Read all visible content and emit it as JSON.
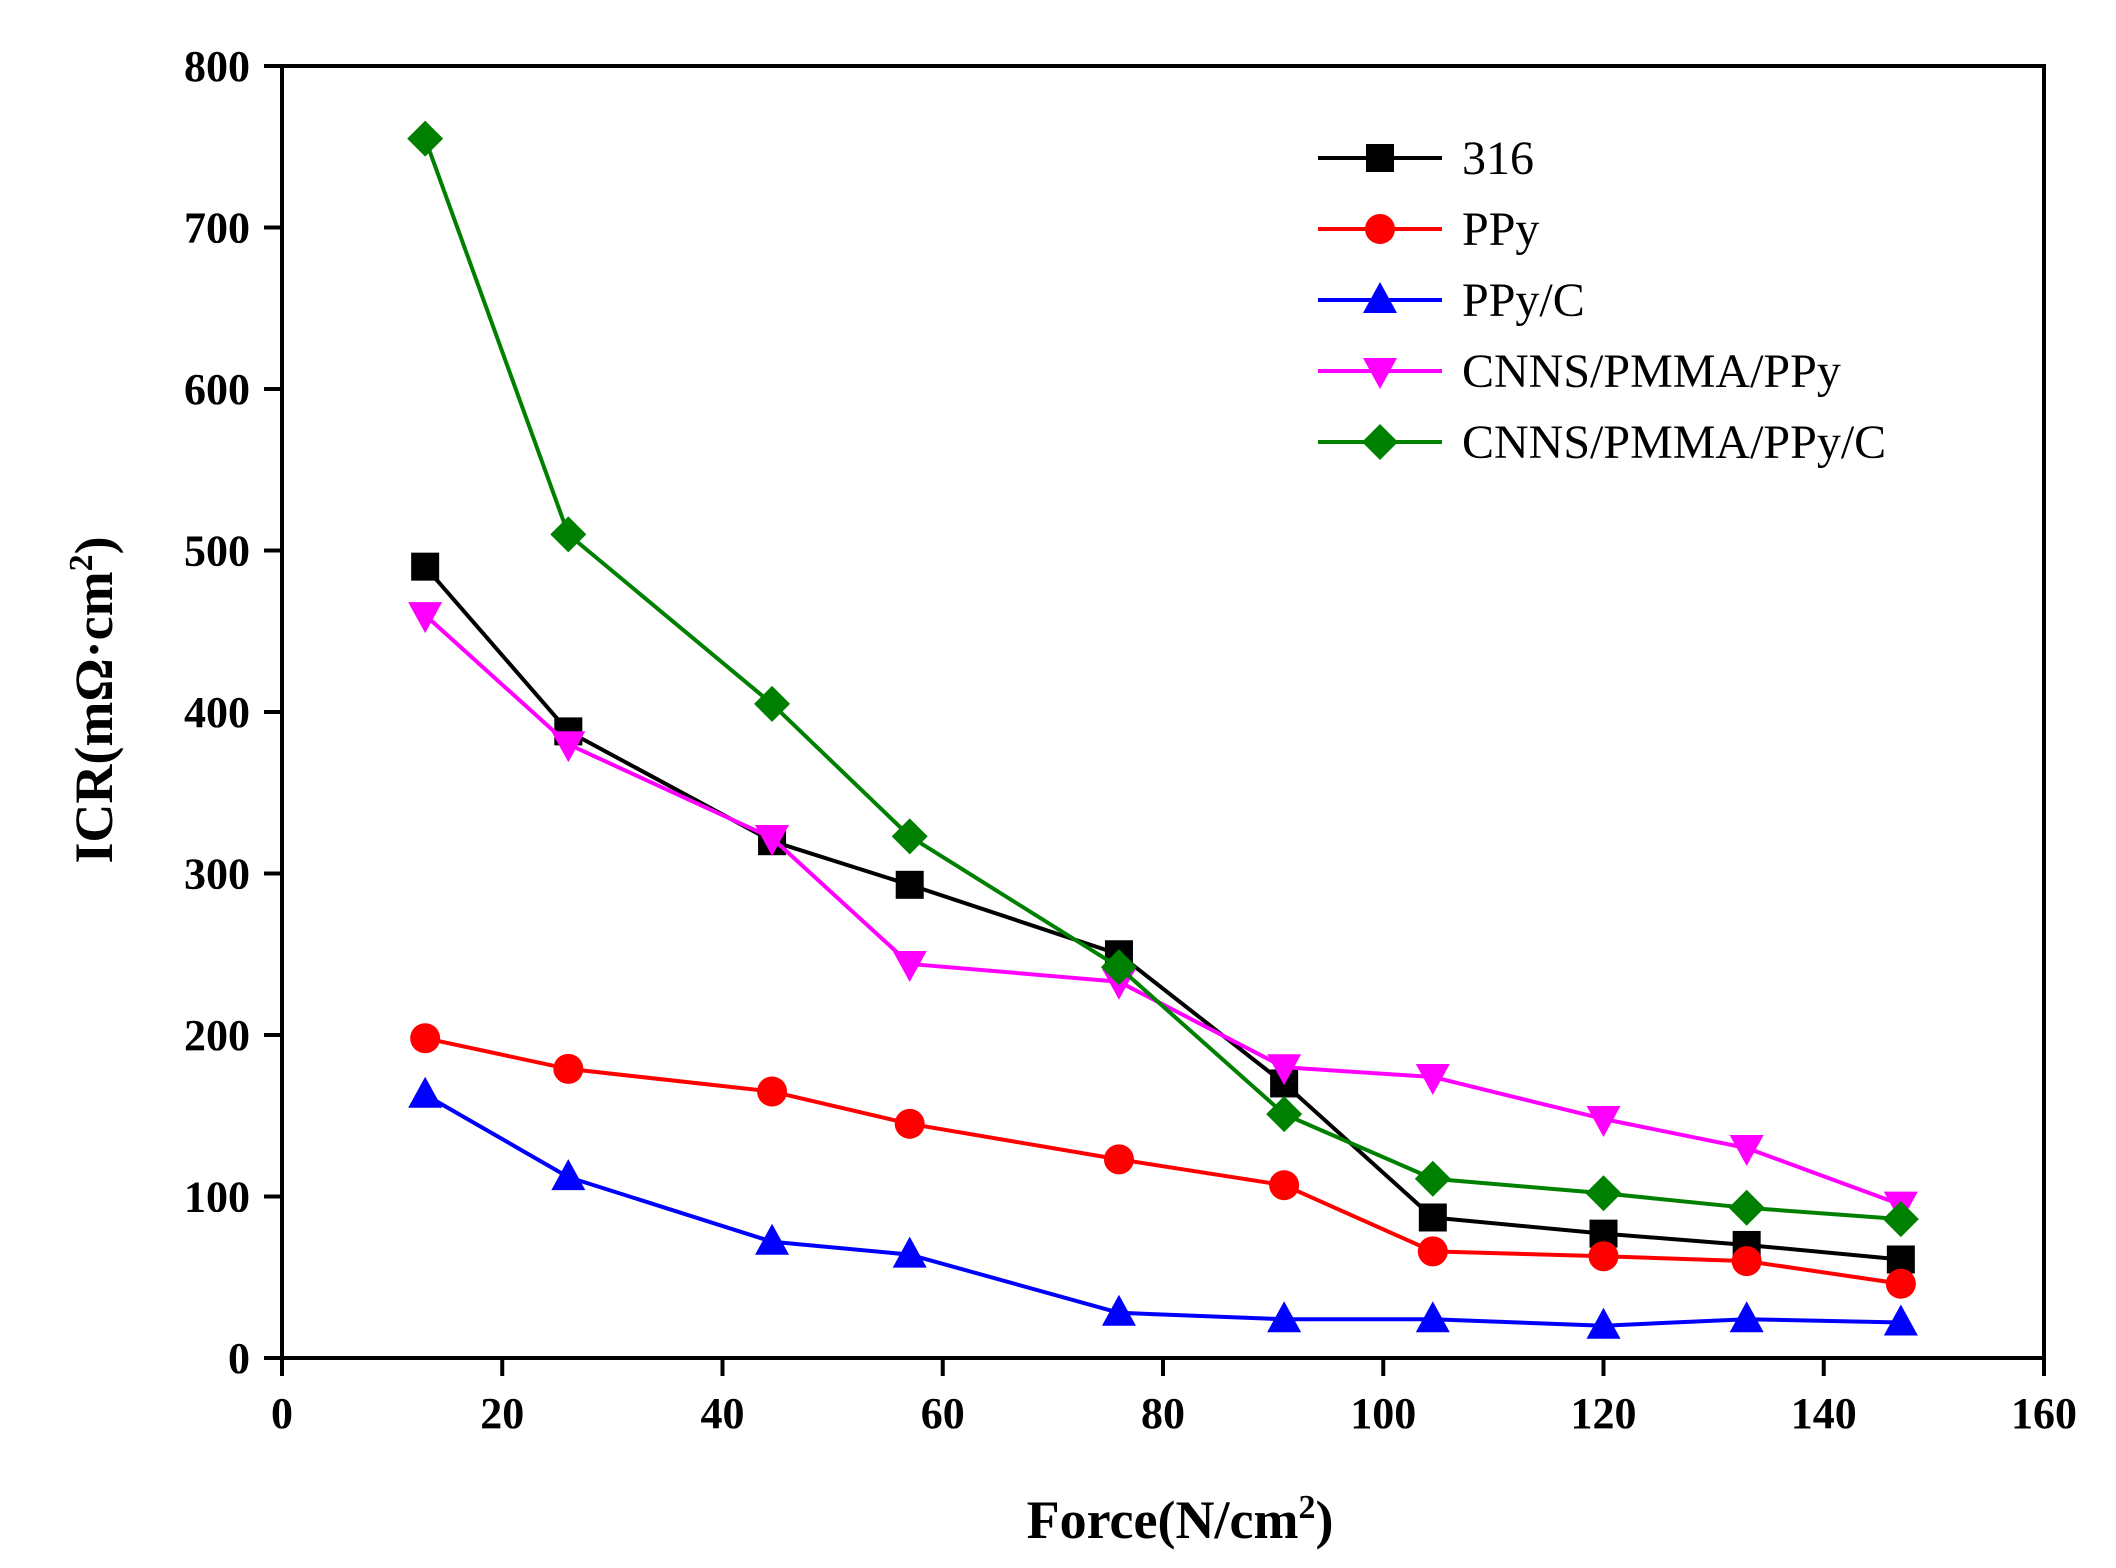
{
  "chart_data": {
    "type": "line",
    "title": "",
    "xlabel": "Force(N/cm",
    "xlabel_sup": "2",
    "xlabel_end": ")",
    "ylabel": "ICR(mΩ·cm",
    "ylabel_sup": "2",
    "ylabel_end": ")",
    "xlim": [
      0,
      160
    ],
    "ylim": [
      0,
      800
    ],
    "xticks": [
      0,
      20,
      40,
      60,
      80,
      100,
      120,
      140,
      160
    ],
    "yticks": [
      0,
      100,
      200,
      300,
      400,
      500,
      600,
      700,
      800
    ],
    "grid": false,
    "legend_position": "top-right",
    "x": [
      13,
      26,
      44.5,
      57,
      76,
      91,
      104.5,
      120,
      133,
      147
    ],
    "series": [
      {
        "name": "316",
        "color": "#000000",
        "marker": "square",
        "values": [
          490,
          388,
          320,
          293,
          250,
          170,
          87,
          77,
          70,
          61
        ]
      },
      {
        "name": "PPy",
        "color": "#ff0000",
        "marker": "circle",
        "values": [
          198,
          179,
          165,
          145,
          123,
          107,
          66,
          63,
          60,
          46
        ]
      },
      {
        "name": "PPy/C",
        "color": "#0000ff",
        "marker": "triangle-up",
        "values": [
          163,
          112,
          72,
          64,
          28,
          24,
          24,
          20,
          24,
          22
        ]
      },
      {
        "name": "CNNS/PMMA/PPy",
        "color": "#ff00ff",
        "marker": "triangle-down",
        "values": [
          460,
          380,
          322,
          244,
          233,
          180,
          174,
          148,
          130,
          95
        ]
      },
      {
        "name": "CNNS/PMMA/PPy/C",
        "color": "#008000",
        "marker": "diamond",
        "values": [
          755,
          510,
          405,
          323,
          242,
          151,
          111,
          102,
          93,
          86
        ]
      }
    ]
  }
}
